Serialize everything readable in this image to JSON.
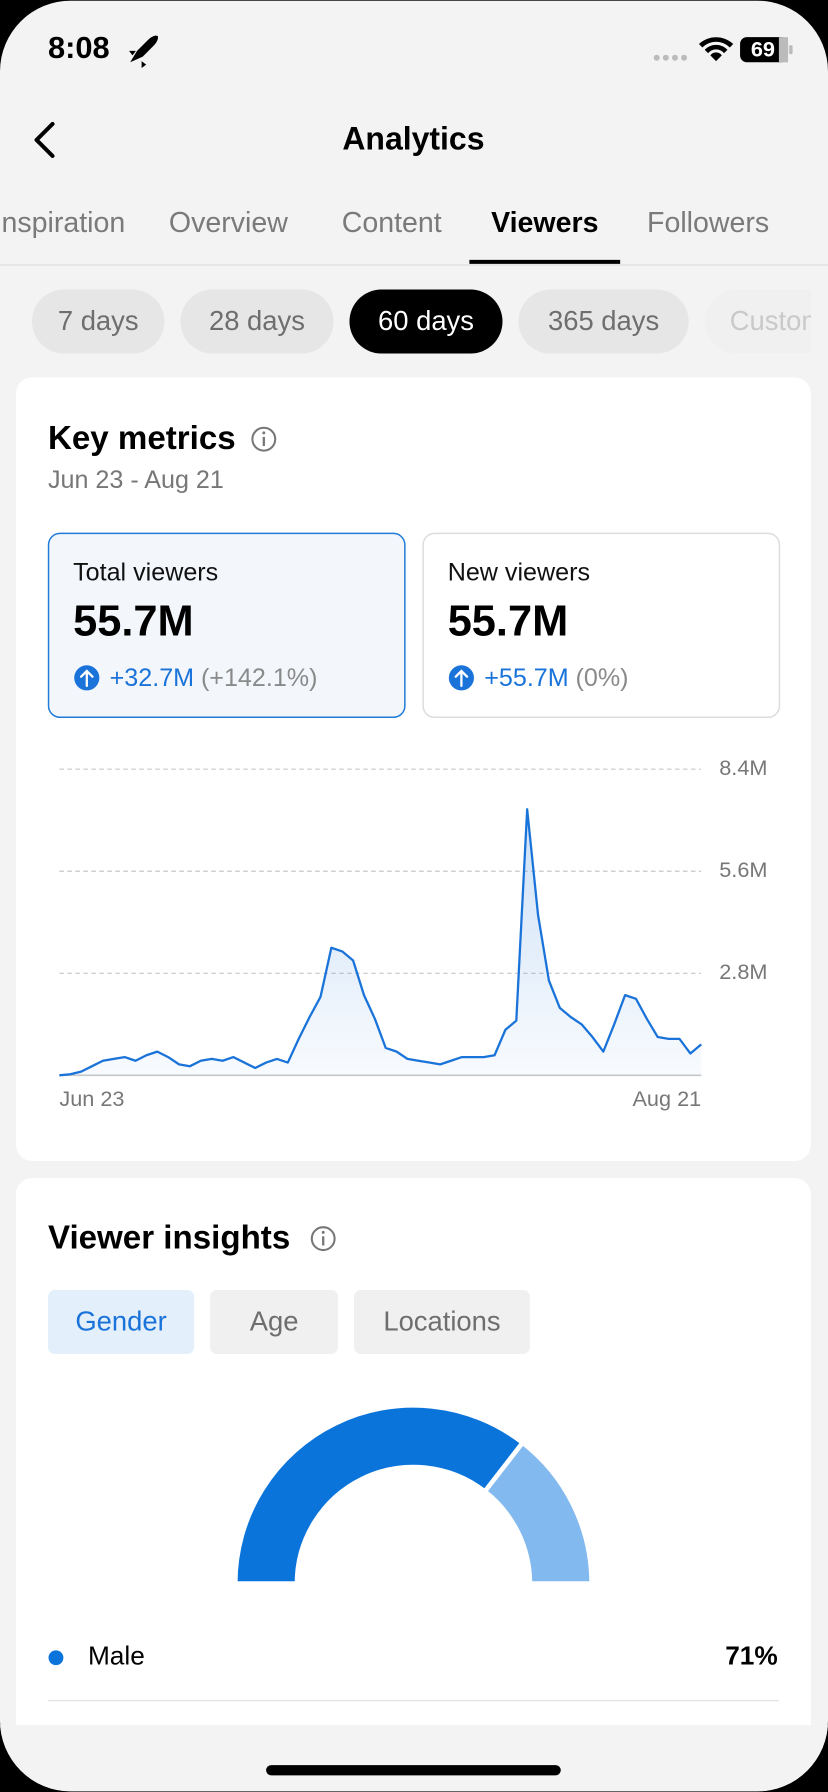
{
  "status_bar": {
    "time": "8:08",
    "battery": "69"
  },
  "header": {
    "title": "Analytics"
  },
  "tabs": [
    {
      "label": "Inspiration"
    },
    {
      "label": "Overview"
    },
    {
      "label": "Content"
    },
    {
      "label": "Viewers",
      "active": true
    },
    {
      "label": "Followers"
    }
  ],
  "periods": [
    {
      "label": "7 days"
    },
    {
      "label": "28 days"
    },
    {
      "label": "60 days",
      "active": true
    },
    {
      "label": "365 days"
    },
    {
      "label": "Custom"
    }
  ],
  "key_metrics": {
    "title": "Key metrics",
    "date_range": "Jun 23 - Aug 21",
    "metrics": [
      {
        "label": "Total viewers",
        "value": "55.7M",
        "change": "+32.7M",
        "change_pct": "(+142.1%)",
        "selected": true
      },
      {
        "label": "New viewers",
        "value": "55.7M",
        "change": "+55.7M",
        "change_pct": "(0%)"
      }
    ]
  },
  "viewer_insights": {
    "title": "Viewer insights",
    "tabs": [
      {
        "label": "Gender",
        "active": true
      },
      {
        "label": "Age"
      },
      {
        "label": "Locations"
      }
    ]
  },
  "chart_data": [
    {
      "type": "line",
      "color": "#1a73d9",
      "categories": [
        "Jun 23",
        null,
        null,
        null,
        null,
        null,
        null,
        null,
        null,
        null,
        null,
        null,
        null,
        null,
        null,
        null,
        null,
        null,
        null,
        null,
        null,
        null,
        null,
        null,
        null,
        null,
        null,
        null,
        null,
        null,
        null,
        null,
        null,
        null,
        null,
        null,
        null,
        null,
        null,
        null,
        null,
        null,
        null,
        null,
        null,
        null,
        null,
        null,
        null,
        null,
        null,
        null,
        null,
        null,
        null,
        null,
        null,
        null,
        null,
        "Aug 21"
      ],
      "values": [
        0,
        0.03,
        0.1,
        0.25,
        0.4,
        0.45,
        0.5,
        0.4,
        0.55,
        0.65,
        0.5,
        0.3,
        0.25,
        0.4,
        0.45,
        0.4,
        0.5,
        0.35,
        0.2,
        0.35,
        0.45,
        0.35,
        1.0,
        1.6,
        2.15,
        3.5,
        3.4,
        3.15,
        2.2,
        1.55,
        0.75,
        0.65,
        0.45,
        0.4,
        0.35,
        0.3,
        0.4,
        0.5,
        0.5,
        0.5,
        0.55,
        1.25,
        1.5,
        7.3,
        4.4,
        2.6,
        1.85,
        1.6,
        1.4,
        1.05,
        0.65,
        1.4,
        2.2,
        2.1,
        1.55,
        1.05,
        1.0,
        1.0,
        0.6,
        0.85
      ],
      "ylim": [
        0,
        8.4
      ],
      "yticks": [
        {
          "value": 2.8,
          "label": "2.8M"
        },
        {
          "value": 5.6,
          "label": "5.6M"
        },
        {
          "value": 8.4,
          "label": "8.4M"
        }
      ],
      "grid": true
    },
    {
      "type": "pie",
      "style": "half-donut",
      "categories": [
        "Male",
        null
      ],
      "values": [
        71,
        29
      ],
      "value_labels": [
        "71%",
        null
      ],
      "colors": [
        "#0a74da",
        "#82b9ee"
      ]
    }
  ]
}
